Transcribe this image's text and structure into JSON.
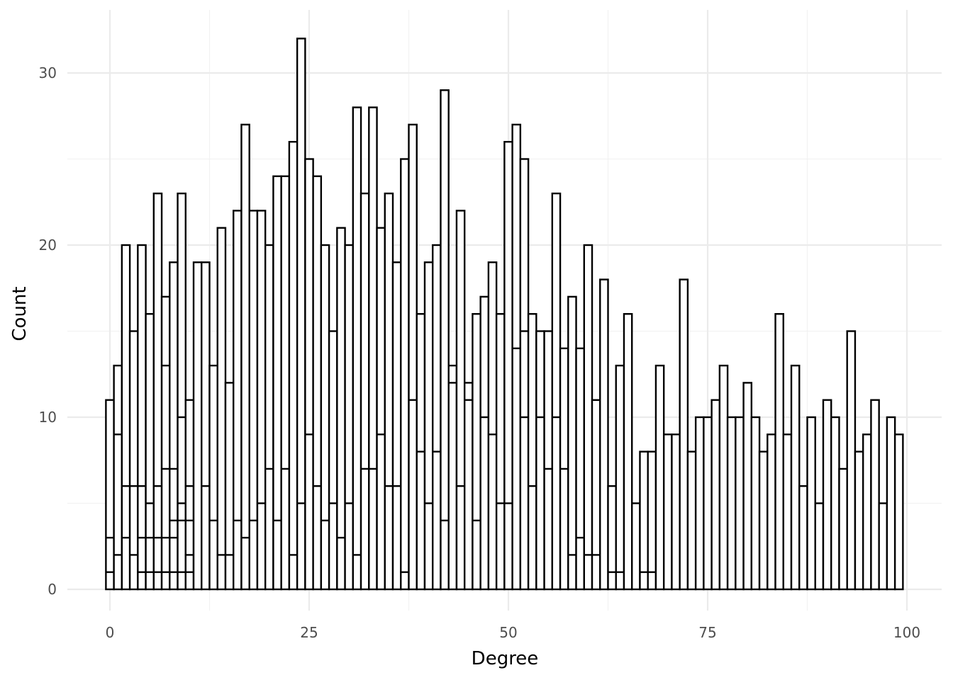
{
  "chart_data": {
    "type": "bar",
    "title": "",
    "xlabel": "Degree",
    "ylabel": "Count",
    "xlim": [
      -1,
      100
    ],
    "ylim": [
      0,
      32
    ],
    "x_ticks": [
      "0",
      "25",
      "50",
      "75",
      "100"
    ],
    "y_ticks": [
      "0",
      "10",
      "20",
      "30"
    ],
    "grid": true,
    "legend": "none",
    "colors": {
      "fill": "#ffffff",
      "outline": "#000000",
      "grid": "#ebebeb",
      "tick_text": "#4d4d4d"
    },
    "x": [
      0,
      1,
      2,
      3,
      4,
      5,
      6,
      7,
      8,
      9,
      10,
      11,
      12,
      13,
      14,
      15,
      16,
      17,
      18,
      19,
      20,
      21,
      22,
      23,
      24,
      25,
      26,
      27,
      28,
      29,
      30,
      31,
      32,
      33,
      34,
      35,
      36,
      37,
      38,
      39,
      40,
      41,
      42,
      43,
      44,
      45,
      46,
      47,
      48,
      49,
      50,
      51,
      52,
      53,
      54,
      55,
      56,
      57,
      58,
      59,
      60,
      61,
      62,
      63,
      64,
      65,
      66,
      67,
      68,
      69,
      70,
      71,
      72,
      73,
      74,
      75,
      76,
      77,
      78,
      79,
      80,
      81,
      82,
      83,
      84,
      85,
      86,
      87,
      88,
      89,
      90,
      91,
      92,
      93,
      94,
      95,
      96,
      97,
      98,
      99
    ],
    "values": [
      11,
      13,
      20,
      15,
      20,
      16,
      23,
      17,
      19,
      23,
      11,
      19,
      19,
      13,
      21,
      12,
      22,
      27,
      22,
      22,
      20,
      24,
      24,
      26,
      32,
      25,
      24,
      20,
      15,
      21,
      20,
      28,
      23,
      28,
      21,
      23,
      19,
      25,
      27,
      16,
      19,
      20,
      29,
      13,
      22,
      12,
      16,
      17,
      19,
      16,
      26,
      27,
      25,
      16,
      15,
      15,
      23,
      14,
      17,
      14,
      20,
      11,
      18,
      6,
      13,
      16,
      5,
      8,
      8,
      13,
      9,
      9,
      18,
      8,
      10,
      10,
      11,
      13,
      10,
      10,
      12,
      10,
      8,
      9,
      16,
      9,
      13,
      6,
      10,
      5,
      11,
      10,
      7,
      15,
      8,
      9,
      11,
      5,
      10,
      9
    ],
    "inner_segments": [
      [
        1,
        3
      ],
      [
        2,
        9
      ],
      [
        3,
        6
      ],
      [
        2,
        6
      ],
      [
        1,
        3,
        6
      ],
      [
        1,
        3,
        5
      ],
      [
        1,
        3,
        6
      ],
      [
        1,
        3,
        7,
        13
      ],
      [
        1,
        3,
        4,
        7
      ],
      [
        1,
        4,
        5,
        10
      ],
      [
        1,
        2,
        4,
        6
      ],
      [],
      [
        6
      ],
      [
        4
      ],
      [
        2
      ],
      [
        2
      ],
      [
        4
      ],
      [
        3
      ],
      [
        4
      ],
      [
        5
      ],
      [
        7
      ],
      [
        4
      ],
      [
        7
      ],
      [
        2
      ],
      [
        5
      ],
      [
        9
      ],
      [
        6
      ],
      [
        4
      ],
      [
        5
      ],
      [
        3
      ],
      [
        5
      ],
      [
        2
      ],
      [
        7
      ],
      [
        7
      ],
      [
        9
      ],
      [
        6
      ],
      [
        6
      ],
      [
        1
      ],
      [
        11
      ],
      [
        8
      ],
      [
        5
      ],
      [
        8
      ],
      [
        4
      ],
      [
        12
      ],
      [
        6
      ],
      [
        11
      ],
      [
        4
      ],
      [
        10
      ],
      [
        9
      ],
      [
        5
      ],
      [
        5
      ],
      [
        14
      ],
      [
        10,
        15
      ],
      [
        6
      ],
      [
        10
      ],
      [
        7
      ],
      [
        10
      ],
      [
        7
      ],
      [
        2
      ],
      [
        3
      ],
      [
        2
      ],
      [
        2,
        11
      ],
      [],
      [
        1
      ],
      [
        1
      ],
      [],
      [],
      [
        1
      ],
      [
        1
      ],
      [],
      [],
      [],
      [],
      [],
      [],
      [],
      [],
      [],
      [],
      [],
      [],
      [],
      [],
      [],
      [],
      [],
      [],
      [],
      [],
      [],
      [],
      [],
      [],
      [],
      [],
      [],
      [],
      [],
      [],
      []
    ]
  }
}
